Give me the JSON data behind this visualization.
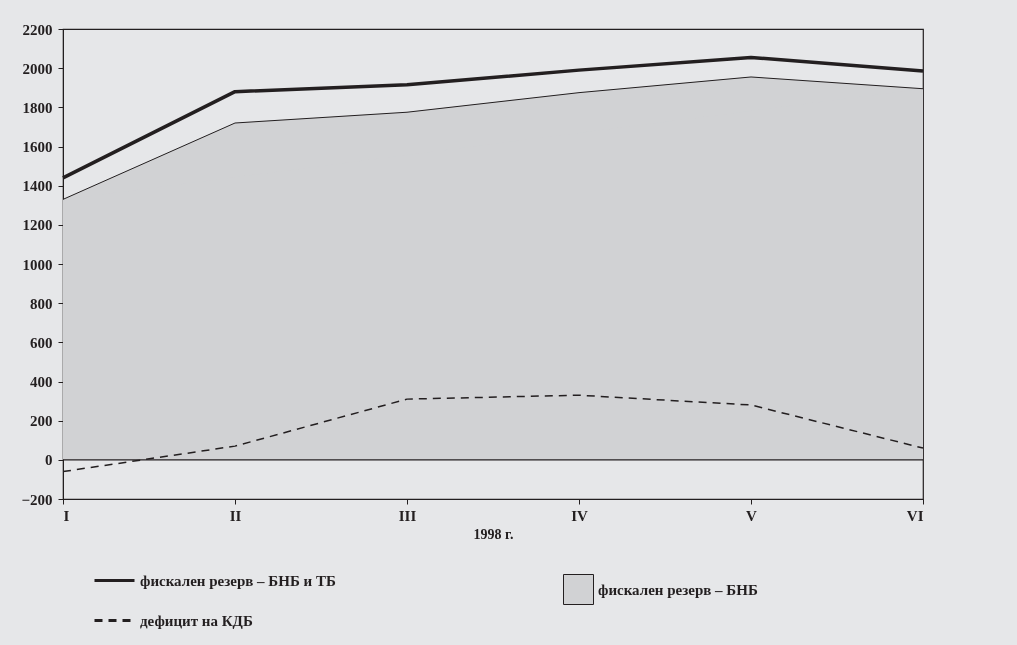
{
  "chart_data": {
    "type": "line",
    "xlabel": "1998 г.",
    "categories": [
      "I",
      "II",
      "III",
      "IV",
      "V",
      "VI"
    ],
    "series": [
      {
        "name": "фискален резерв – БНБ",
        "type": "area",
        "color": "#d1d2d4",
        "values": [
          1330,
          1720,
          1775,
          1875,
          1955,
          1895
        ]
      },
      {
        "name": "фискален резерв – БНБ и ТБ",
        "line_style": "solid",
        "color": "#231f20",
        "values": [
          1440,
          1880,
          1915,
          1990,
          2055,
          1985
        ]
      },
      {
        "name": "дефицит на КДБ",
        "line_style": "dashed",
        "color": "#231f20",
        "values": [
          -60,
          70,
          310,
          330,
          280,
          60
        ]
      }
    ],
    "ylim": [
      -200,
      2200
    ],
    "yticks": [
      -200,
      0,
      200,
      400,
      600,
      800,
      1000,
      1200,
      1400,
      1600,
      1800,
      2000,
      2200
    ],
    "ref_lines": [
      {
        "axis": "y",
        "value": 0
      }
    ],
    "grid": false,
    "legend": "bottom",
    "marker": "none"
  }
}
